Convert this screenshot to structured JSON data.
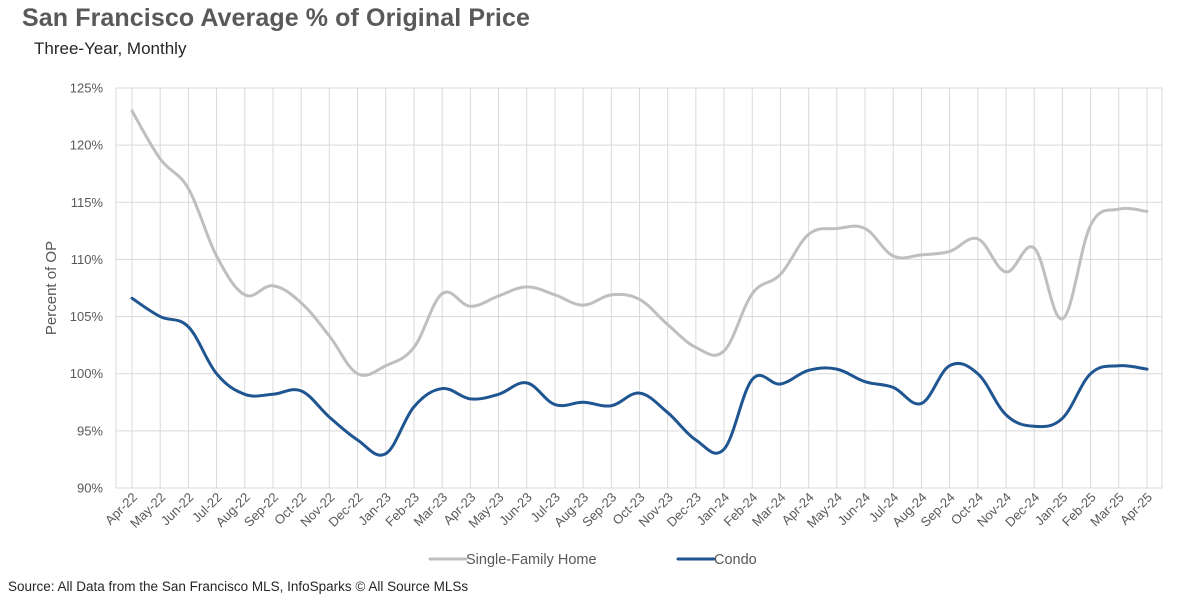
{
  "title": "San Francisco Average % of Original Price",
  "subtitle": "Three-Year, Monthly",
  "source": "Source: All Data from the San Francisco MLS, InfoSparks © All Source MLSs",
  "chart_data": {
    "type": "line",
    "ylabel": "Percent of OP",
    "ylim": [
      90,
      125
    ],
    "yticks": [
      90,
      95,
      100,
      105,
      110,
      115,
      120,
      125
    ],
    "ytick_labels": [
      "90%",
      "95%",
      "100%",
      "105%",
      "110%",
      "115%",
      "120%",
      "125%"
    ],
    "grid": true,
    "legend_position": "bottom",
    "categories": [
      "Apr-22",
      "May-22",
      "Jun-22",
      "Jul-22",
      "Aug-22",
      "Sep-22",
      "Oct-22",
      "Nov-22",
      "Dec-22",
      "Jan-23",
      "Feb-23",
      "Mar-23",
      "Apr-23",
      "May-23",
      "Jun-23",
      "Jul-23",
      "Aug-23",
      "Sep-23",
      "Oct-23",
      "Nov-23",
      "Dec-23",
      "Jan-24",
      "Feb-24",
      "Mar-24",
      "Apr-24",
      "May-24",
      "Jun-24",
      "Jul-24",
      "Aug-24",
      "Sep-24",
      "Oct-24",
      "Nov-24",
      "Dec-24",
      "Jan-25",
      "Feb-25",
      "Mar-25",
      "Apr-25"
    ],
    "series": [
      {
        "name": "Single-Family Home",
        "color": "#BFBFBF",
        "values": [
          123.0,
          118.8,
          116.2,
          110.3,
          106.9,
          107.7,
          106.2,
          103.3,
          100.0,
          100.7,
          102.3,
          107.0,
          105.9,
          106.8,
          107.6,
          106.9,
          106.0,
          106.9,
          106.5,
          104.3,
          102.3,
          102.0,
          107.0,
          108.7,
          112.2,
          112.7,
          112.7,
          110.3,
          110.4,
          110.7,
          111.8,
          108.9,
          111.0,
          104.8,
          113.0,
          114.4,
          114.2
        ]
      },
      {
        "name": "Condo",
        "color": "#1F5591",
        "values": [
          106.6,
          105.0,
          104.1,
          100.0,
          98.2,
          98.2,
          98.5,
          96.2,
          94.2,
          93.0,
          97.1,
          98.7,
          97.8,
          98.2,
          99.2,
          97.3,
          97.5,
          97.2,
          98.3,
          96.6,
          94.2,
          93.4,
          99.5,
          99.1,
          100.3,
          100.4,
          99.3,
          98.8,
          97.4,
          100.7,
          100.0,
          96.4,
          95.4,
          96.1,
          100.0,
          100.7,
          100.4
        ]
      }
    ]
  }
}
